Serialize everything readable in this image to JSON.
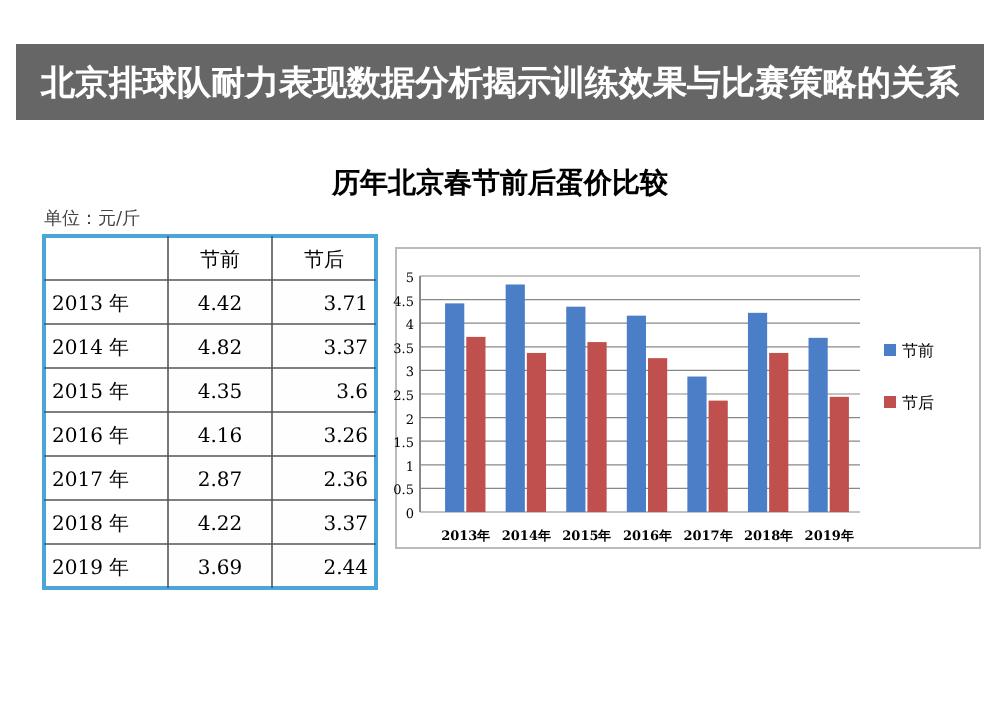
{
  "chart_data": [
    {
      "type": "heatmap",
      "subtitle": "单位：元/斤",
      "categories": [
        "节前",
        "节后"
      ],
      "y_categories": [
        "2013 年",
        "2014 年",
        "2015 年",
        "2016 年",
        "2017 年",
        "2018 年",
        "2019 年"
      ],
      "cells": [
        [
          4.42,
          3.71
        ],
        [
          4.82,
          3.37
        ],
        [
          4.35,
          3.6
        ],
        [
          4.16,
          3.26
        ],
        [
          2.87,
          2.36
        ],
        [
          4.22,
          3.37
        ],
        [
          3.69,
          2.44
        ]
      ],
      "data_labels": true
    },
    {
      "type": "bar",
      "title": "历年北京春节前后蛋价比较",
      "annotations": [
        "北京排球队耐力表现数据分析揭示训练效果与比赛策略的关系"
      ],
      "categories": [
        "2013年",
        "2014年",
        "2015年",
        "2016年",
        "2017年",
        "2018年",
        "2019年"
      ],
      "series": [
        {
          "name": "节前",
          "color": "#4a7ec6",
          "values": [
            4.42,
            4.82,
            4.35,
            4.16,
            2.87,
            4.22,
            3.69
          ]
        },
        {
          "name": "节后",
          "color": "#c0504d",
          "values": [
            3.71,
            3.37,
            3.6,
            3.26,
            2.36,
            3.37,
            2.44
          ]
        }
      ],
      "ylim": [
        0,
        5
      ],
      "yticks": [
        0,
        0.5,
        1,
        1.5,
        2,
        2.5,
        3,
        3.5,
        4,
        4.5,
        5
      ],
      "grid": "y",
      "legend": "right"
    }
  ]
}
